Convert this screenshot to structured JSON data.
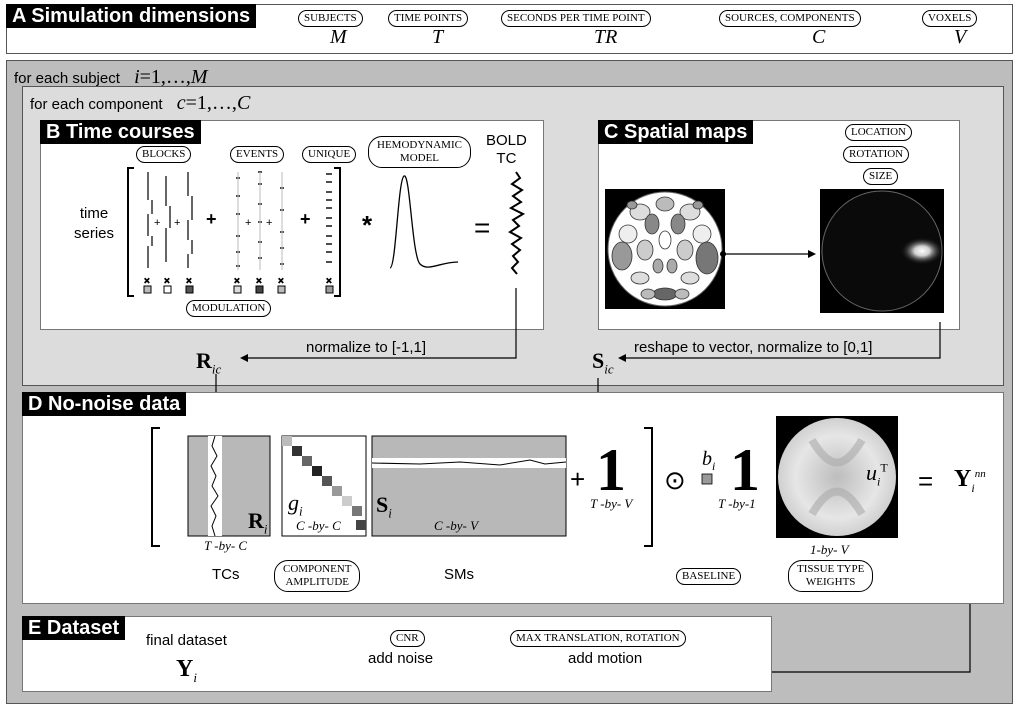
{
  "section_a": {
    "title": "A Simulation dimensions",
    "params": [
      {
        "label": "SUBJECTS",
        "symbol": "M"
      },
      {
        "label": "TIME POINTS",
        "symbol": "T"
      },
      {
        "label": "SECONDS PER TIME POINT",
        "symbol": "TR"
      },
      {
        "label": "SOURCES, COMPONENTS",
        "symbol": "C"
      },
      {
        "label": "VOXELS",
        "symbol": "V"
      }
    ]
  },
  "subject_loop": {
    "text": "for each subject",
    "math_var": "i",
    "math_range": "=1,…,",
    "math_end": "M"
  },
  "component_loop": {
    "text": "for each component",
    "math_var": "c",
    "math_range": "=1,…,",
    "math_end": "C"
  },
  "section_b": {
    "title": "B Time courses",
    "time_series_line1": "time",
    "time_series_line2": "series",
    "blocks": "BLOCKS",
    "events": "EVENTS",
    "unique": "UNIQUE",
    "hemo_line1": "HEMODYNAMIC",
    "hemo_line2": "MODEL",
    "modulation": "MODULATION",
    "bold_line1": "BOLD",
    "bold_line2": "TC",
    "plus": "+",
    "star": "*",
    "equals": "="
  },
  "section_c": {
    "title": "C Spatial maps",
    "location": "LOCATION",
    "rotation": "ROTATION",
    "size": "SIZE"
  },
  "arrows": {
    "normalize_tc": "normalize to [-1,1]",
    "normalize_sm": "reshape to vector, normalize to [0,1]",
    "R_main": "R",
    "R_sub": "ic",
    "S_main": "S",
    "S_sub": "ic"
  },
  "section_d": {
    "title": "D No-noise data",
    "Ri_main": "R",
    "Ri_sub": "i",
    "gi_main": "g",
    "gi_sub": "i",
    "Si_main": "S",
    "Si_sub": "i",
    "T_by_C": "T -by- C",
    "C_by_C": "C -by- C",
    "C_by_V": "C -by- V",
    "plus": "+",
    "one": "1",
    "T_by_V": "T -by- V",
    "odot": "⊙",
    "bi_main": "b",
    "bi_sub": "i",
    "T_by_1": "T -by-1",
    "ui_main": "u",
    "ui_sub": "i",
    "ui_sup": "T",
    "one_by_V": "1-by- V",
    "equals": "=",
    "Y_main": "Y",
    "Y_sub": "i",
    "Y_sup": "nn",
    "tcs": "TCs",
    "comp_amp_line1": "COMPONENT",
    "comp_amp_line2": "AMPLITUDE",
    "sms": "SMs",
    "baseline": "BASELINE",
    "tissue_line1": "TISSUE TYPE",
    "tissue_line2": "WEIGHTS"
  },
  "section_e": {
    "title": "E Dataset",
    "final": "final dataset",
    "Y_main": "Y",
    "Y_sub": "i",
    "cnr": "CNR",
    "add_noise": "add noise",
    "max_trans": "MAX TRANSLATION, ROTATION",
    "add_motion": "add motion"
  }
}
